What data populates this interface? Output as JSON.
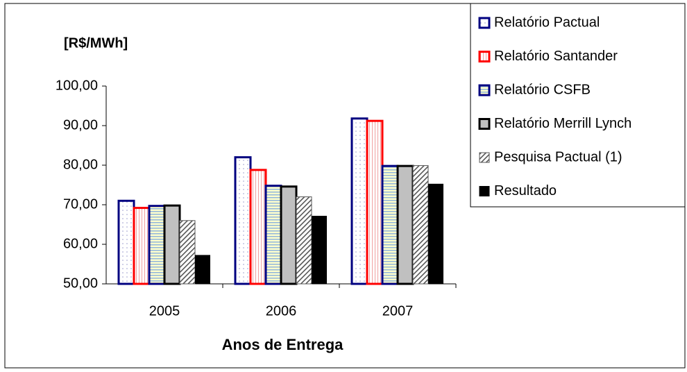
{
  "chart_data": {
    "type": "bar",
    "y_label": "[R$/MWh]",
    "x_label": "Anos de Entrega",
    "categories": [
      "2005",
      "2006",
      "2007"
    ],
    "series": [
      {
        "name": "Relatório Pactual",
        "color": "#000080",
        "values": [
          71,
          82,
          91.8
        ]
      },
      {
        "name": "Relatório Santander",
        "color": "#ff0000",
        "values": [
          69.2,
          78.8,
          91.2
        ]
      },
      {
        "name": "Relatório CSFB",
        "color": "#000080",
        "values": [
          69.7,
          74.8,
          79.8
        ]
      },
      {
        "name": "Relatório Merrill Lynch",
        "color": "#000000",
        "values": [
          69.8,
          74.6,
          79.8
        ]
      },
      {
        "name": "Pesquisa Pactual (1)",
        "color": "#555555",
        "values": [
          66,
          72,
          79.9
        ]
      },
      {
        "name": "Resultado",
        "color": "#000000",
        "values": [
          57.3,
          67.2,
          75.3
        ]
      }
    ],
    "ylim": [
      50,
      100
    ],
    "yticks": [
      {
        "value": 50,
        "label": "50,00"
      },
      {
        "value": 60,
        "label": "60,00"
      },
      {
        "value": 70,
        "label": "70,00"
      },
      {
        "value": 80,
        "label": "80,00"
      },
      {
        "value": 90,
        "label": "90,00"
      },
      {
        "value": 100,
        "label": "100,00"
      }
    ],
    "legend": "top-right"
  }
}
